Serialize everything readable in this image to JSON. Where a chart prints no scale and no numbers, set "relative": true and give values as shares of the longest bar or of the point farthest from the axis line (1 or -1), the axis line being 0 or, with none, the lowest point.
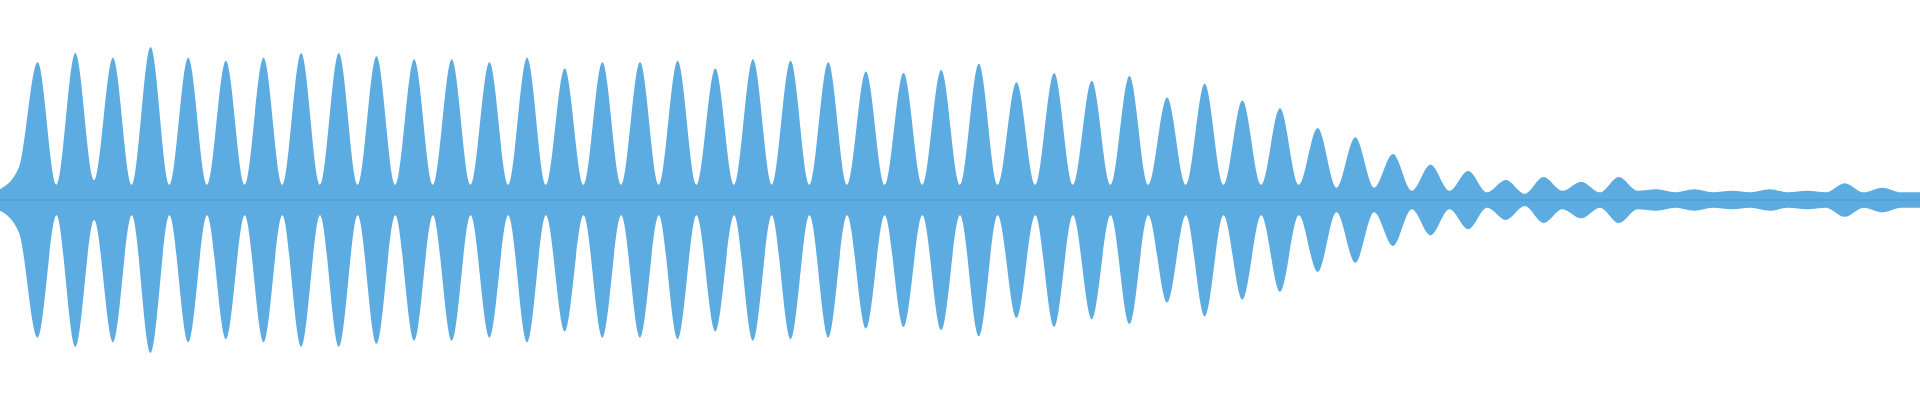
{
  "chart_data": {
    "type": "area",
    "relative": true,
    "ref_lines": [
      {
        "axis": "y",
        "value": 0,
        "color": "#4a9ad4"
      }
    ],
    "categories": [
      null,
      null,
      null,
      null,
      null,
      null,
      null,
      null,
      null,
      null,
      null,
      null,
      null,
      null,
      null,
      null,
      null,
      null,
      null,
      null,
      null,
      null,
      null,
      null,
      null,
      null,
      null,
      null,
      null,
      null,
      null,
      null,
      null,
      null,
      null,
      null,
      null,
      null,
      null,
      null,
      null,
      null,
      null,
      null,
      null,
      null,
      null,
      null,
      null,
      null,
      null,
      null,
      null,
      null,
      null,
      null,
      null,
      null,
      null,
      null,
      null,
      null,
      null,
      null,
      null,
      null,
      null,
      null,
      null,
      null,
      null,
      null,
      null,
      null,
      null,
      null,
      null,
      null,
      null,
      null,
      null,
      null,
      null,
      null,
      null,
      null,
      null,
      null,
      null,
      null,
      null,
      null,
      null,
      null,
      null,
      null,
      null,
      null,
      null,
      null,
      null,
      null,
      null
    ],
    "series": [
      {
        "color": "#5dace1",
        "values": [
          0.07,
          0.21,
          0.9,
          0.1,
          0.96,
          0.13,
          0.93,
          0.1,
          1,
          0.1,
          0.93,
          0.1,
          0.91,
          0.1,
          0.93,
          0.1,
          0.96,
          0.1,
          0.96,
          0.1,
          0.94,
          0.1,
          0.92,
          0.1,
          0.92,
          0.1,
          0.9,
          0.1,
          0.93,
          0.1,
          0.86,
          0.1,
          0.9,
          0.1,
          0.9,
          0.1,
          0.91,
          0.1,
          0.86,
          0.1,
          0.92,
          0.1,
          0.91,
          0.1,
          0.9,
          0.1,
          0.84,
          0.1,
          0.83,
          0.1,
          0.85,
          0.1,
          0.89,
          0.1,
          0.77,
          0.1,
          0.83,
          0.1,
          0.78,
          0.1,
          0.81,
          0.1,
          0.67,
          0.1,
          0.76,
          0.1,
          0.65,
          0.1,
          0.6,
          0.1,
          0.47,
          0.08,
          0.41,
          0.08,
          0.3,
          0.06,
          0.23,
          0.06,
          0.19,
          0.05,
          0.13,
          0.04,
          0.15,
          0.06,
          0.12,
          0.05,
          0.15,
          0.06,
          0.07,
          0.05,
          0.07,
          0.05,
          0.06,
          0.05,
          0.07,
          0.05,
          0.06,
          0.05,
          0.11,
          0.05,
          0.08,
          0.05,
          0.05
        ]
      },
      {
        "color": "#5dace1",
        "values": [
          -0.07,
          -0.21,
          -0.9,
          -0.1,
          -0.96,
          -0.13,
          -0.93,
          -0.1,
          -1,
          -0.1,
          -0.93,
          -0.1,
          -0.91,
          -0.1,
          -0.93,
          -0.1,
          -0.96,
          -0.1,
          -0.96,
          -0.1,
          -0.94,
          -0.1,
          -0.92,
          -0.1,
          -0.92,
          -0.1,
          -0.9,
          -0.1,
          -0.93,
          -0.1,
          -0.86,
          -0.1,
          -0.9,
          -0.1,
          -0.9,
          -0.1,
          -0.91,
          -0.1,
          -0.86,
          -0.1,
          -0.92,
          -0.1,
          -0.91,
          -0.1,
          -0.9,
          -0.1,
          -0.84,
          -0.1,
          -0.83,
          -0.1,
          -0.85,
          -0.1,
          -0.89,
          -0.1,
          -0.77,
          -0.1,
          -0.83,
          -0.1,
          -0.78,
          -0.1,
          -0.81,
          -0.1,
          -0.67,
          -0.1,
          -0.76,
          -0.1,
          -0.65,
          -0.1,
          -0.6,
          -0.1,
          -0.47,
          -0.08,
          -0.41,
          -0.08,
          -0.3,
          -0.06,
          -0.23,
          -0.06,
          -0.19,
          -0.05,
          -0.13,
          -0.04,
          -0.15,
          -0.06,
          -0.12,
          -0.05,
          -0.15,
          -0.06,
          -0.07,
          -0.05,
          -0.07,
          -0.05,
          -0.06,
          -0.05,
          -0.07,
          -0.05,
          -0.06,
          -0.05,
          -0.11,
          -0.05,
          -0.08,
          -0.05,
          -0.05
        ]
      }
    ]
  }
}
